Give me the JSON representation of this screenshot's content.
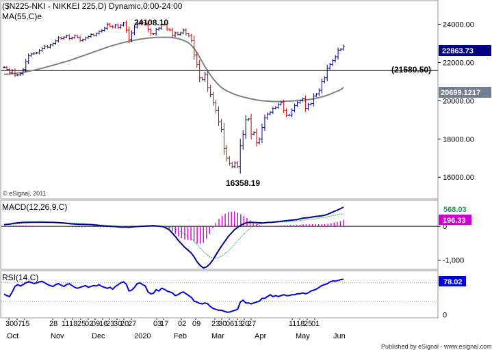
{
  "header": {
    "title": "($N225-NKI - NIKKEI 225,D) Dynamic,0:00-24:00",
    "ma_label": "MA(55,C)e"
  },
  "footer": {
    "published_by": "Published by eSignal - www.esignal.com"
  },
  "colors": {
    "price_up": "#000080",
    "price_down": "#d00000",
    "ma_line": "#808080",
    "macd_line": "#00008b",
    "macd_signal": "#3cb371",
    "macd_hist": "#cc00cc",
    "rsi_line": "#0000e0",
    "price_tag_bg": "#000080",
    "ma_tag_bg": "#708090",
    "hline_tag_bg": "#ffffff"
  },
  "chart_data": [
    {
      "type": "line",
      "panel": "price",
      "title": "($N225-NKI - NIKKEI 225,D) Dynamic,0:00-24:00",
      "ylim": [
        14900,
        25200
      ],
      "yticks": [
        "16000.00",
        "18000.00",
        "20000.00",
        "22000.00",
        "24000.00"
      ],
      "ytick_values": [
        16000,
        18000,
        20000,
        22000,
        24000
      ],
      "xlabels_top": [
        "30",
        "07",
        "15",
        "28",
        "11",
        "18",
        "25",
        "02",
        "09",
        "16",
        "23",
        "30",
        "20",
        "27",
        "03",
        "17",
        "02",
        "09",
        "23",
        "30",
        "06",
        "13",
        "20",
        "27",
        "11",
        "18",
        "25",
        "01"
      ],
      "xlabels_month": [
        "Oct",
        "Nov",
        "Dec",
        "2020",
        "Feb",
        "Mar",
        "Apr",
        "May",
        "Jun"
      ],
      "series": [
        {
          "name": "NIKKEI 225",
          "kind": "price",
          "values": [
            21755,
            21640,
            21460,
            21590,
            21340,
            21350,
            21420,
            21630,
            22040,
            22350,
            22450,
            22490,
            22500,
            22630,
            22750,
            22860,
            22800,
            22920,
            23000,
            23130,
            23300,
            23250,
            23330,
            23410,
            23250,
            23300,
            23400,
            23320,
            23150,
            23200,
            23290,
            23360,
            23470,
            23420,
            23520,
            23620,
            23680,
            23800,
            24010,
            23900,
            23850,
            23960,
            23830,
            23950,
            24070,
            23700,
            23200,
            23550,
            23850,
            24030,
            24100,
            24080,
            24030,
            23710,
            23500,
            23500,
            23720,
            23800,
            24000,
            23980,
            23750,
            23700,
            23400,
            23550,
            23460,
            23550,
            23700,
            23500,
            23400,
            23150,
            22400,
            21900,
            21200,
            21100,
            21400,
            20700,
            20320,
            19900,
            19500,
            18900,
            18500,
            17500,
            17000,
            16720,
            16550,
            16750,
            16550,
            17650,
            18250,
            19000,
            19050,
            18250,
            18350,
            17800,
            18000,
            18600,
            19100,
            19300,
            19400,
            19600,
            19650,
            19800,
            19900,
            19500,
            19250,
            19250,
            19500,
            19750,
            19900,
            20000,
            20100,
            19600,
            19800,
            19850,
            20250,
            20350,
            20550,
            21000,
            21200,
            21700,
            21900,
            22100,
            22300,
            22650,
            22700,
            22860
          ],
          "annotations": [
            {
              "text": "24108.10",
              "kind": "high"
            },
            {
              "text": "16358.19",
              "kind": "low"
            }
          ],
          "horizontal_line": {
            "value": 21580.5,
            "label": "(21580.50)"
          },
          "last_value_label": "22863.73"
        },
        {
          "name": "MA(55,C)e",
          "kind": "ma",
          "values": [
            21380,
            21390,
            21402,
            21416,
            21432,
            21450,
            21470,
            21492,
            21516,
            21542,
            21570,
            21600,
            21632,
            21666,
            21702,
            21740,
            21780,
            21820,
            21860,
            21900,
            21940,
            21980,
            22020,
            22060,
            22100,
            22150,
            22200,
            22250,
            22300,
            22350,
            22400,
            22450,
            22500,
            22550,
            22600,
            22650,
            22700,
            22750,
            22800,
            22850,
            22890,
            22930,
            22970,
            23010,
            23045,
            23080,
            23110,
            23140,
            23170,
            23195,
            23220,
            23240,
            23260,
            23275,
            23290,
            23300,
            23310,
            23315,
            23320,
            23320,
            23318,
            23312,
            23300,
            23280,
            23250,
            23210,
            23160,
            23100,
            23020,
            22900,
            22730,
            22520,
            22280,
            22020,
            21780,
            21550,
            21340,
            21150,
            20980,
            20830,
            20700,
            20600,
            20520,
            20450,
            20390,
            20330,
            20280,
            20240,
            20200,
            20160,
            20130,
            20100,
            20070,
            20040,
            20020,
            20000,
            19990,
            19980,
            19970,
            19960,
            19960,
            19960,
            19960,
            19970,
            19980,
            19990,
            19990,
            20000,
            20010,
            20020,
            20030,
            20040,
            20060,
            20080,
            20100,
            20130,
            20160,
            20200,
            20240,
            20290,
            20340,
            20400,
            20460,
            20520,
            20580,
            20699
          ],
          "last_value_label": "20699.1217"
        }
      ]
    },
    {
      "type": "line",
      "panel": "macd",
      "title": "MACD(12,26,9,C)",
      "ylim": [
        -1250,
        750
      ],
      "yticks": [
        "0",
        "-1,000"
      ],
      "ytick_values": [
        0,
        -1000
      ],
      "series": [
        {
          "name": "MACD",
          "values": [
            50,
            60,
            70,
            90,
            100,
            110,
            115,
            118,
            120,
            121,
            122,
            122,
            122,
            121,
            120,
            118,
            115,
            112,
            105,
            98,
            90,
            80,
            72,
            65,
            60,
            57,
            55,
            53,
            50,
            40,
            30,
            20,
            10,
            5,
            0,
            -5,
            -10,
            -20,
            -25,
            -20,
            -30,
            -20,
            -10,
            -5,
            0,
            5,
            10,
            15,
            20,
            10,
            0,
            -10,
            -50,
            -100,
            -200,
            -300,
            -420,
            -520,
            -620,
            -700,
            -780,
            -900,
            -1050,
            -1160,
            -1230,
            -1200,
            -1120,
            -1000,
            -850,
            -700,
            -560,
            -430,
            -300,
            -200,
            -100,
            -30,
            30,
            80,
            110,
            120,
            115,
            110,
            105,
            100,
            110,
            115,
            120,
            130,
            140,
            150,
            160,
            170,
            180,
            190,
            200,
            220,
            240,
            250,
            260,
            275,
            290,
            300,
            310,
            330,
            360,
            400,
            440,
            480,
            520,
            568
          ]
        },
        {
          "name": "Signal",
          "values": [
            40,
            48,
            56,
            64,
            72,
            80,
            88,
            95,
            100,
            105,
            108,
            110,
            112,
            114,
            115,
            116,
            116,
            115,
            113,
            110,
            107,
            103,
            98,
            93,
            88,
            82,
            76,
            70,
            64,
            57,
            50,
            43,
            36,
            30,
            24,
            18,
            12,
            6,
            0,
            -5,
            -10,
            -14,
            -16,
            -16,
            -15,
            -12,
            -8,
            -4,
            0,
            2,
            2,
            0,
            -10,
            -25,
            -50,
            -80,
            -120,
            -170,
            -230,
            -300,
            -370,
            -450,
            -540,
            -640,
            -740,
            -830,
            -900,
            -940,
            -950,
            -920,
            -870,
            -800,
            -720,
            -630,
            -530,
            -430,
            -330,
            -230,
            -140,
            -60,
            0,
            40,
            70,
            90,
            100,
            105,
            110,
            115,
            120,
            125,
            130,
            135,
            142,
            150,
            160,
            170,
            180,
            190,
            200,
            210,
            222,
            236,
            250,
            266,
            284,
            304,
            325,
            345,
            360,
            372
          ]
        },
        {
          "name": "Histogram",
          "values": [
            10,
            12,
            14,
            26,
            28,
            30,
            27,
            23,
            20,
            16,
            14,
            12,
            10,
            7,
            5,
            2,
            -1,
            -3,
            -8,
            -12,
            -17,
            -23,
            -26,
            -28,
            -28,
            -25,
            -21,
            -17,
            -14,
            -17,
            -20,
            -23,
            -26,
            -25,
            -24,
            -23,
            -22,
            -26,
            -25,
            -15,
            -20,
            -6,
            6,
            11,
            15,
            17,
            18,
            19,
            20,
            8,
            -2,
            -10,
            -40,
            -75,
            -150,
            -220,
            -300,
            -350,
            -390,
            -400,
            -410,
            -450,
            -510,
            -520,
            -490,
            -370,
            -220,
            -60,
            100,
            220,
            310,
            370,
            420,
            430,
            430,
            400,
            360,
            310,
            250,
            180,
            115,
            70,
            35,
            10,
            10,
            10,
            10,
            15,
            20,
            25,
            30,
            35,
            38,
            40,
            40,
            50,
            60,
            60,
            60,
            65,
            68,
            64,
            60,
            64,
            76,
            96,
            115,
            135,
            160,
            196
          ]
        }
      ],
      "last_value_labels": {
        "macd": "568.03",
        "hist": "196.33"
      }
    },
    {
      "type": "line",
      "panel": "rsi",
      "title": "RSI(14,C)",
      "ylim": [
        -5,
        95
      ],
      "yticks": [
        "0"
      ],
      "ytick_values": [
        0
      ],
      "reference_lines": [
        70,
        30
      ],
      "series": [
        {
          "name": "RSI",
          "values": [
            45,
            42,
            40,
            50,
            62,
            66,
            63,
            66,
            70,
            72,
            71,
            68,
            70,
            72,
            73,
            70,
            66,
            64,
            62,
            66,
            68,
            65,
            62,
            66,
            68,
            64,
            60,
            58,
            60,
            62,
            64,
            60,
            62,
            64,
            63,
            66,
            62,
            60,
            58,
            60,
            56,
            62,
            66,
            70,
            72,
            67,
            52,
            54,
            60,
            68,
            70,
            66,
            63,
            50,
            46,
            47,
            55,
            52,
            58,
            56,
            52,
            50,
            48,
            42,
            44,
            48,
            50,
            46,
            42,
            38,
            30,
            28,
            25,
            24,
            26,
            24,
            18,
            14,
            12,
            10,
            10,
            8,
            6,
            6,
            8,
            10,
            12,
            28,
            32,
            26,
            26,
            24,
            26,
            28,
            30,
            36,
            36,
            40,
            44,
            40,
            42,
            40,
            42,
            44,
            42,
            42,
            44,
            44,
            46,
            46,
            48,
            46,
            48,
            52,
            54,
            56,
            60,
            64,
            66,
            68,
            72,
            74,
            74,
            75,
            77,
            78
          ]
        }
      ],
      "last_value_label": "78.02"
    }
  ],
  "credit_small": "© eSignal, 2011"
}
